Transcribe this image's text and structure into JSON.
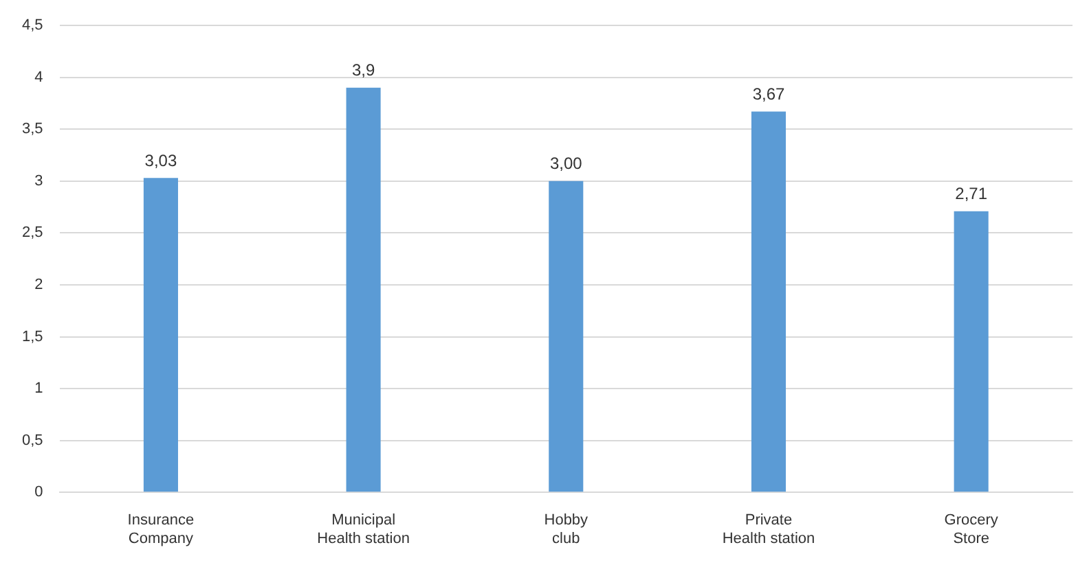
{
  "chart_data": {
    "type": "bar",
    "categories": [
      "Insurance Company",
      "Municipal Health station",
      "Hobby club",
      "Private Health station",
      "Grocery Store"
    ],
    "values": [
      3.03,
      3.9,
      3.0,
      3.67,
      2.71
    ],
    "value_labels": [
      "3,03",
      "3,9",
      "3,00",
      "3,67",
      "2,71"
    ],
    "color": "#5b9bd5",
    "ylim": [
      0,
      4.5
    ],
    "yticks": [
      0,
      {
        "value": 0.5,
        "label": "0,5"
      },
      1,
      {
        "value": 1.5,
        "label": "1,5"
      },
      2,
      {
        "value": 2.5,
        "label": "2,5"
      },
      3,
      {
        "value": 3.5,
        "label": "3,5"
      },
      4,
      {
        "value": 4.5,
        "label": "4,5"
      }
    ],
    "grid": "y",
    "legend": false
  }
}
